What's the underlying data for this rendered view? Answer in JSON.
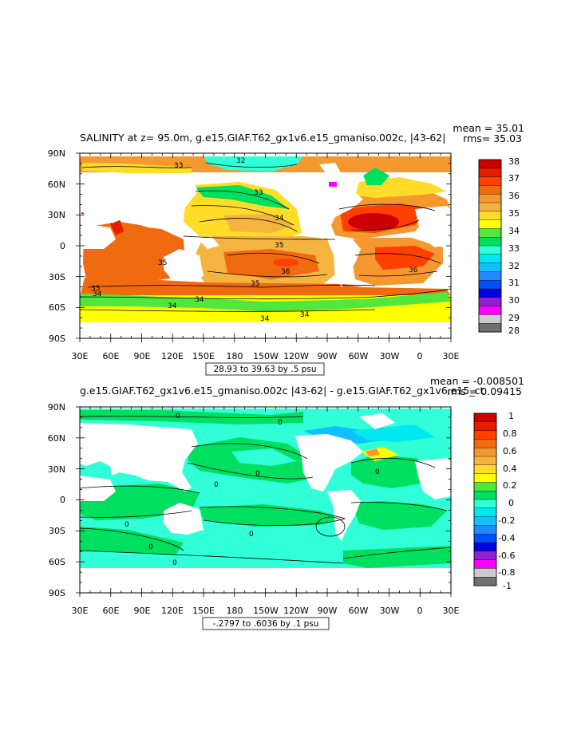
{
  "panels": [
    {
      "title": "SALINITY at z=  95.0m, g.e15.GIAF.T62_gx1v6.e15_gmaniso.002c, |43-62|",
      "mean": "mean = 35.01",
      "rms": "rms= 35.03",
      "range": "28.93 to 39.63 by .5 psu",
      "lat_ticks": [
        "90N",
        "60N",
        "30N",
        "0",
        "30S",
        "60S",
        "90S"
      ],
      "lon_ticks": [
        "30E",
        "60E",
        "90E",
        "120E",
        "150E",
        "180",
        "150W",
        "120W",
        "90W",
        "60W",
        "30W",
        "0",
        "30E"
      ],
      "contour_labels": [
        "33",
        "32",
        "33",
        "34",
        "35",
        "35",
        "36",
        "35",
        "35",
        "34",
        "34",
        "34",
        "36",
        "34",
        "34"
      ],
      "colorbar": {
        "labels": [
          "38",
          "37",
          "36",
          "35",
          "34",
          "33",
          "32",
          "31",
          "30",
          "29",
          "28"
        ],
        "colors": [
          "#cc0000",
          "#e81c00",
          "#ff4000",
          "#f06a10",
          "#f59830",
          "#f5b440",
          "#ffdc28",
          "#ffff00",
          "#50e83c",
          "#00e060",
          "#30ffd8",
          "#00e8f0",
          "#10c0ff",
          "#1e8cff",
          "#0050ff",
          "#0000e0",
          "#9020d0",
          "#ff00ff",
          "#cccccc",
          "#707070"
        ]
      }
    },
    {
      "title": "g.e15.GIAF.T62_gx1v6.e15_gmaniso.002c |43-62| - g.e15.GIAF.T62_gx1v6.e15_ct",
      "mean": "mean = -0.008501",
      "rms": "rms = 0.09415",
      "range": "-.2797 to .6036 by .1 psu",
      "lat_ticks": [
        "90N",
        "60N",
        "30N",
        "0",
        "30S",
        "60S",
        "90S"
      ],
      "lon_ticks": [
        "30E",
        "60E",
        "90E",
        "120E",
        "150E",
        "180",
        "150W",
        "120W",
        "90W",
        "60W",
        "30W",
        "0",
        "30E"
      ],
      "contour_labels": [
        "0",
        "0",
        "0",
        "0",
        "0",
        "0",
        "0",
        "0",
        "0"
      ],
      "colorbar": {
        "labels": [
          "1",
          "0.8",
          "0.6",
          "0.4",
          "0.2",
          "0",
          "-0.2",
          "-0.4",
          "-0.6",
          "-0.8",
          "-1"
        ],
        "colors": [
          "#cc0000",
          "#e81c00",
          "#ff4000",
          "#f06a10",
          "#f59830",
          "#f5b440",
          "#ffdc28",
          "#ffff00",
          "#50e83c",
          "#00e060",
          "#30ffd8",
          "#00e8f0",
          "#10c0ff",
          "#1e8cff",
          "#0050ff",
          "#0000e0",
          "#9020d0",
          "#ff00ff",
          "#cccccc",
          "#707070"
        ]
      }
    }
  ]
}
